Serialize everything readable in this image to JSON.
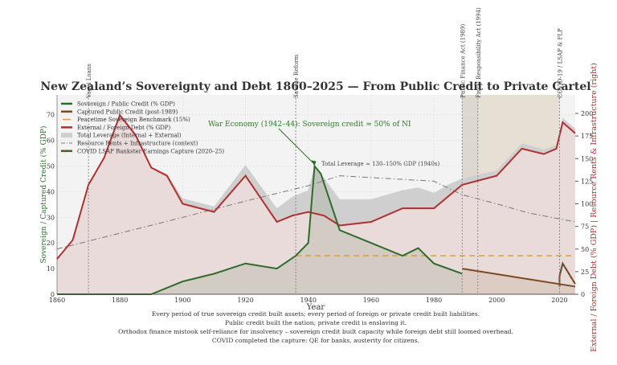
{
  "chart_data": {
    "type": "line",
    "title": "New Zealand’s Sovereignty and Debt 1860–2025 — From Public Credit to Private Cartel",
    "xlabel": "Year",
    "ylabel_left": "Sovereign / Captured Credit (% GDP)",
    "ylabel_right": "External / Foreign Debt (% GDP)  |  Resource Rents & Infrastructure (right)",
    "xlim": [
      1860,
      2025
    ],
    "ylim_left": [
      0,
      78
    ],
    "ylim_right": [
      0,
      220
    ],
    "x_ticks": [
      "1860",
      "1880",
      "1900",
      "1920",
      "1940",
      "1960",
      "1980",
      "2000",
      "2020"
    ],
    "y_ticks_left": [
      "0",
      "10",
      "20",
      "30",
      "40",
      "50",
      "60",
      "70"
    ],
    "y_ticks_right": [
      "0",
      "25",
      "50",
      "75",
      "100",
      "125",
      "150",
      "175",
      "200"
    ],
    "grid": true,
    "legend_position": "top-left",
    "series": [
      {
        "name": "Sovereign / Public Credit (% GDP)",
        "axis": "left",
        "color": "#2e6b2a",
        "x": [
          1860,
          1870,
          1880,
          1890,
          1900,
          1910,
          1920,
          1930,
          1936,
          1940,
          1942,
          1944,
          1950,
          1960,
          1970,
          1975,
          1980,
          1989
        ],
        "y": [
          0,
          0,
          0,
          0,
          5,
          8,
          12,
          10,
          15,
          20,
          50,
          47,
          25,
          20,
          15,
          18,
          12,
          8
        ]
      },
      {
        "name": "Captured Public Credit (post-1989)",
        "axis": "left",
        "color": "#7a4a1e",
        "x": [
          1989,
          2025
        ],
        "y": [
          10,
          3
        ]
      },
      {
        "name": "Peacetime Sovereign Benchmark (15%)",
        "axis": "left",
        "color": "#d4a040",
        "x": [
          1936,
          2025
        ],
        "y": [
          15,
          15
        ]
      },
      {
        "name": "External / Foreign Debt (% GDP)",
        "axis": "right",
        "color": "#b03030",
        "x": [
          1860,
          1865,
          1870,
          1875,
          1880,
          1885,
          1890,
          1895,
          1900,
          1910,
          1920,
          1930,
          1935,
          1940,
          1945,
          1950,
          1960,
          1970,
          1980,
          1989,
          2000,
          2008,
          2015,
          2019,
          2021,
          2025
        ],
        "y": [
          39,
          60,
          121,
          151,
          198,
          176,
          140,
          131,
          100,
          91,
          131,
          80,
          87,
          91,
          87,
          76,
          80,
          95,
          95,
          121,
          131,
          161,
          155,
          161,
          190,
          178
        ]
      },
      {
        "name": "Total Leverage (Internal + External)",
        "axis": "right",
        "color": "#c8c8c8",
        "x": [
          1860,
          1865,
          1870,
          1875,
          1880,
          1885,
          1890,
          1895,
          1900,
          1910,
          1920,
          1930,
          1935,
          1940,
          1942,
          1944,
          1950,
          1960,
          1970,
          1975,
          1980,
          1985,
          1989,
          2000,
          2008,
          2015,
          2019,
          2021,
          2025
        ],
        "y": [
          39,
          60,
          121,
          151,
          200,
          178,
          141,
          133,
          106,
          97,
          143,
          95,
          108,
          115,
          142,
          133,
          105,
          105,
          115,
          118,
          112,
          122,
          128,
          137,
          167,
          160,
          165,
          195,
          183
        ]
      },
      {
        "name": "Resource Rents + Infrastructure (context)",
        "axis": "right",
        "color": "#777777",
        "x": [
          1860,
          1900,
          1920,
          1940,
          1950,
          1960,
          1970,
          1980,
          1989,
          2000,
          2010,
          2025
        ],
        "y": [
          50,
          85,
          103,
          120,
          131,
          129,
          127,
          125,
          110,
          100,
          90,
          80
        ]
      },
      {
        "name": "COVID LSAP Bankster Earnings Capture (2020–25)",
        "axis": "left",
        "color": "#2e6b2a",
        "color2": "#b03030",
        "x": [
          2020,
          2020,
          2021,
          2025
        ],
        "y": [
          3,
          7,
          12,
          4
        ]
      }
    ],
    "vlines": [
      {
        "x": 1870,
        "label": "Vogel Loans"
      },
      {
        "x": 1936,
        "label": "Savage Reform"
      },
      {
        "x": 1989,
        "label": "Public Finance Act (1989)"
      },
      {
        "x": 1994,
        "label": "Fiscal Responsibility Act (1994)"
      },
      {
        "x": 2020,
        "label": "COVID-19 / LSAP & FLP"
      }
    ],
    "shaded_periods": [
      [
        1989,
        2020
      ],
      [
        1989,
        1994
      ]
    ],
    "annotations": [
      {
        "text": "War Economy (1942–44): Sovereign credit ≈ 50% of NI",
        "arrow_to": [
          1942,
          50
        ],
        "color": "#2e7a2a"
      },
      {
        "text": "Total Leverage ≈ 130–150% GDP (1940s)",
        "color": "#444444"
      }
    ],
    "footnotes": [
      "Every period of true sovereign credit built assets; every period of foreign or private credit built liabilities.",
      "Public credit built the nation; private credit is enslaving it.",
      "Orthodox finance mistook self-reliance for insolvency – sovereign credit built capacity while foreign debt still loomed overhead.",
      "COVID completed the capture: QE for banks, austerity for citizens."
    ]
  }
}
